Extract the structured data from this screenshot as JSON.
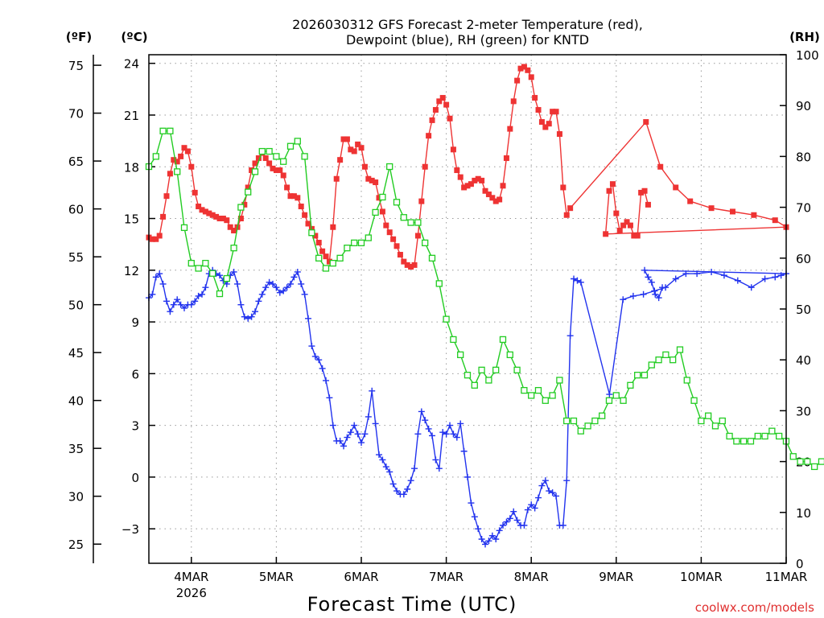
{
  "chart_data": {
    "type": "line",
    "title_lines": [
      "2026030312 GFS Forecast 2-meter Temperature (red),",
      "Dewpoint (blue), RH (green) for KNTD"
    ],
    "xlabel": "Forecast Time (UTC)",
    "credit": "coolwx.com/models",
    "unit_labels": {
      "f": "(ºF)",
      "c": "(ºC)",
      "rh": "(RH)"
    },
    "x_unit": "days since 2026-03-04 00Z",
    "xlim": [
      -0.5,
      7.0
    ],
    "ylim_c": [
      -5.0,
      24.5
    ],
    "ylim_f": [
      23.0,
      76.1
    ],
    "ylim_rh": [
      0,
      100
    ],
    "x_ticks": [
      {
        "x": 0,
        "label": "4MAR",
        "sub": "2026"
      },
      {
        "x": 1,
        "label": "5MAR",
        "sub": ""
      },
      {
        "x": 2,
        "label": "6MAR",
        "sub": ""
      },
      {
        "x": 3,
        "label": "7MAR",
        "sub": ""
      },
      {
        "x": 4,
        "label": "8MAR",
        "sub": ""
      },
      {
        "x": 5,
        "label": "9MAR",
        "sub": ""
      },
      {
        "x": 6,
        "label": "10MAR",
        "sub": ""
      },
      {
        "x": 7,
        "label": "11MAR",
        "sub": ""
      }
    ],
    "c_ticks": [
      {
        "v": -3,
        "label": "−3"
      },
      {
        "v": 0,
        "label": "0"
      },
      {
        "v": 3,
        "label": "3"
      },
      {
        "v": 6,
        "label": "6"
      },
      {
        "v": 9,
        "label": "9"
      },
      {
        "v": 12,
        "label": "12"
      },
      {
        "v": 15,
        "label": "15"
      },
      {
        "v": 18,
        "label": "18"
      },
      {
        "v": 21,
        "label": "21"
      },
      {
        "v": 24,
        "label": "24"
      }
    ],
    "f_ticks": [
      "25",
      "30",
      "35",
      "40",
      "45",
      "50",
      "55",
      "60",
      "65",
      "70",
      "75"
    ],
    "rh_ticks": [
      "0",
      "10",
      "20",
      "30",
      "40",
      "50",
      "60",
      "70",
      "80",
      "90",
      "100"
    ],
    "series": [
      {
        "name": "Temperature",
        "color": "#ee3333",
        "axis": "c",
        "marker": "filled-square",
        "step": 0.04167,
        "values": [
          13.9,
          13.8,
          13.8,
          14.0,
          15.1,
          16.3,
          17.6,
          18.4,
          18.3,
          18.6,
          19.1,
          18.9,
          18.0,
          16.5,
          15.7,
          15.5,
          15.4,
          15.3,
          15.2,
          15.1,
          15.0,
          15.0,
          14.9,
          14.5,
          14.3,
          14.5,
          15.0,
          15.8,
          16.8,
          17.8,
          18.2,
          18.5,
          18.8,
          18.5,
          18.2,
          17.9,
          17.8,
          17.8,
          17.5,
          16.8,
          16.3,
          16.3,
          16.2,
          15.7,
          15.2,
          14.7,
          14.4,
          14.0,
          13.6,
          13.1,
          12.8,
          12.5,
          14.5,
          17.3,
          18.4,
          19.6,
          19.6,
          19.0,
          18.9,
          19.3,
          19.1,
          18.0,
          17.3,
          17.2,
          17.1,
          16.2,
          15.4,
          14.6,
          14.2,
          13.8,
          13.4,
          12.9,
          12.5,
          12.3,
          12.2,
          12.3,
          14.0,
          16.0,
          18.0,
          19.8,
          20.7,
          21.3,
          21.8,
          22.0,
          21.6,
          20.8,
          19.0,
          17.8,
          17.4,
          16.8,
          16.9,
          17.0,
          17.2,
          17.3,
          17.2,
          16.6,
          16.4,
          16.2,
          16.0,
          16.1,
          16.9,
          18.5,
          20.2,
          21.8,
          23.0,
          23.7,
          23.8,
          23.6,
          23.2,
          22.0,
          21.3,
          20.6,
          20.3,
          20.5,
          21.2,
          21.2,
          19.9,
          16.8,
          15.2,
          15.6,
          20.6,
          18.0,
          16.8,
          16.0,
          15.6,
          15.4,
          15.2,
          14.9,
          14.5,
          14.1,
          16.6,
          17.0,
          15.3,
          14.3,
          14.6,
          14.8,
          14.6,
          14.0,
          14.0,
          16.5,
          16.6,
          15.8
        ],
        "x_overrides": {
          "120": 5.35,
          "121": 5.52,
          "122": 5.7,
          "123": 5.87,
          "124": 6.12,
          "125": 6.37,
          "126": 6.62,
          "127": 6.87,
          "128": 7.0
        }
      },
      {
        "name": "Dewpoint",
        "color": "#2233ee",
        "axis": "c",
        "marker": "plus",
        "step": 0.04167,
        "values": [
          10.4,
          10.6,
          11.6,
          11.8,
          11.2,
          10.2,
          9.6,
          10.0,
          10.3,
          10.0,
          9.8,
          10.0,
          10.0,
          10.2,
          10.5,
          10.6,
          11.0,
          11.8,
          12.0,
          11.8,
          11.7,
          11.4,
          11.2,
          11.7,
          11.9,
          11.2,
          10.0,
          9.3,
          9.2,
          9.3,
          9.6,
          10.2,
          10.6,
          11.0,
          11.3,
          11.2,
          11.0,
          10.7,
          10.8,
          11.0,
          11.2,
          11.6,
          11.9,
          11.2,
          10.6,
          9.2,
          7.6,
          7.0,
          6.8,
          6.3,
          5.6,
          4.6,
          3.0,
          2.1,
          2.1,
          1.8,
          2.3,
          2.6,
          3.0,
          2.5,
          2.0,
          2.5,
          3.5,
          5.0,
          3.1,
          1.3,
          1.0,
          0.6,
          0.3,
          -0.4,
          -0.8,
          -1.0,
          -1.0,
          -0.7,
          -0.2,
          0.5,
          2.5,
          3.8,
          3.3,
          2.8,
          2.4,
          1.0,
          0.5,
          2.6,
          2.5,
          3.0,
          2.5,
          2.3,
          3.1,
          1.5,
          0.0,
          -1.5,
          -2.3,
          -3.0,
          -3.6,
          -3.9,
          -3.7,
          -3.4,
          -3.6,
          -3.1,
          -2.8,
          -2.6,
          -2.4,
          -2.0,
          -2.5,
          -2.8,
          -2.8,
          -1.9,
          -1.6,
          -1.8,
          -1.2,
          -0.5,
          -0.2,
          -0.8,
          -0.9,
          -1.1,
          -2.8,
          -2.8,
          -0.2,
          8.2,
          11.5,
          11.4,
          11.3,
          4.8,
          10.3,
          10.5,
          10.6,
          10.8,
          11.0,
          11.5,
          11.8,
          11.8,
          11.9,
          11.7,
          11.4,
          11.0,
          11.5,
          11.6,
          11.7,
          11.8,
          12.0,
          11.6,
          11.3,
          10.6,
          10.4,
          11.0
        ],
        "x_overrides": {
          "123": 4.92,
          "124": 5.08,
          "125": 5.2,
          "126": 5.32,
          "127": 5.45,
          "128": 5.58,
          "129": 5.7,
          "130": 5.82,
          "131": 5.95,
          "132": 6.12,
          "133": 6.27,
          "134": 6.43,
          "135": 6.59,
          "136": 6.75,
          "137": 6.87,
          "138": 6.94,
          "139": 7.0
        }
      },
      {
        "name": "RH",
        "color": "#22cc22",
        "axis": "rh",
        "marker": "open-square",
        "step": 0.08333,
        "values": [
          78,
          80,
          85,
          85,
          77,
          66,
          59,
          58,
          59,
          57,
          53,
          56,
          62,
          70,
          73,
          77,
          81,
          81,
          80,
          79,
          82,
          83,
          80,
          65,
          60,
          58,
          59,
          60,
          62,
          63,
          63,
          64,
          69,
          72,
          78,
          71,
          68,
          67,
          67,
          63,
          60,
          55,
          48,
          44,
          41,
          37,
          35,
          38,
          36,
          38,
          44,
          41,
          38,
          34,
          33,
          34,
          32,
          33,
          36,
          28,
          28,
          26,
          27,
          28,
          29,
          32,
          33,
          32,
          35,
          37,
          37,
          39,
          40,
          41,
          40,
          42,
          36,
          32,
          28,
          29,
          27,
          28,
          25,
          24,
          24,
          24,
          25,
          25,
          26,
          25,
          24,
          21,
          20,
          20,
          19,
          20,
          21,
          22,
          23,
          25,
          24,
          26,
          21,
          25,
          25,
          40,
          78,
          76,
          70,
          36,
          60,
          66,
          69,
          72,
          75,
          79,
          83,
          87,
          71,
          66,
          77,
          83,
          81,
          82,
          84,
          85,
          85,
          71,
          68,
          72
        ]
      }
    ]
  }
}
